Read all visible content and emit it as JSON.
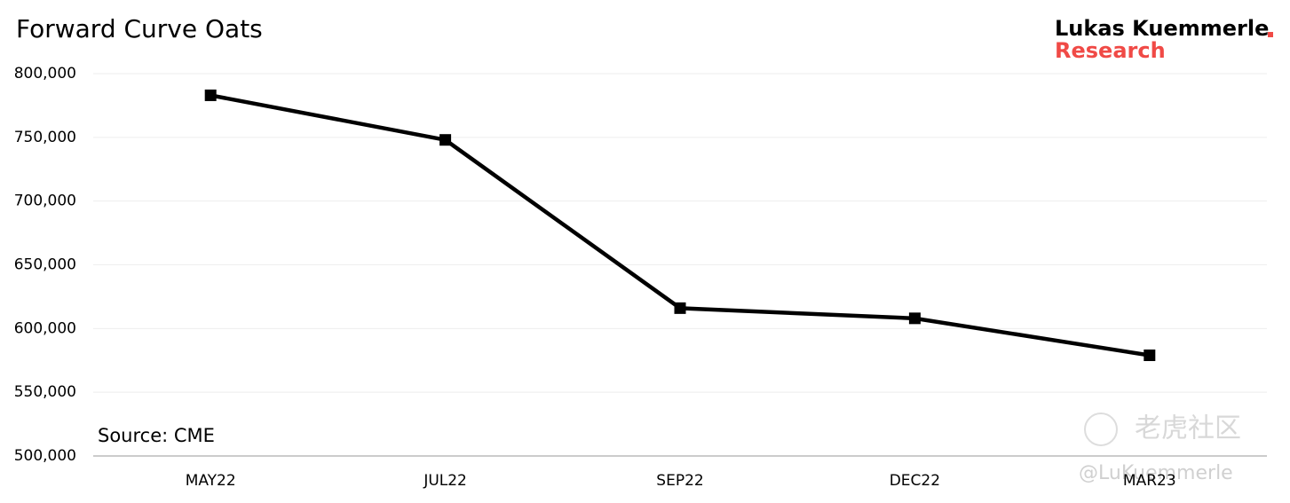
{
  "chart_data": {
    "type": "line",
    "title": "Forward Curve Oats",
    "brand": {
      "name": "Lukas Kuemmerle",
      "sub": "Research"
    },
    "source": "Source: CME",
    "watermark": {
      "site": "老虎社区",
      "handle": "@LuKuemmerle"
    },
    "categories": [
      "MAY22",
      "JUL22",
      "SEP22",
      "DEC22",
      "MAR23"
    ],
    "series": [
      {
        "name": "Oats",
        "color": "#000000",
        "values": [
          783000,
          748000,
          616000,
          608000,
          579000
        ]
      }
    ],
    "ylim": [
      500000,
      800000
    ],
    "yticks": [
      {
        "value": 500000,
        "label": "500,000"
      },
      {
        "value": 550000,
        "label": "550,000"
      },
      {
        "value": 600000,
        "label": "600,000"
      },
      {
        "value": 650000,
        "label": "650,000"
      },
      {
        "value": 700000,
        "label": "700,000"
      },
      {
        "value": 750000,
        "label": "750,000"
      },
      {
        "value": 800000,
        "label": "800,000"
      }
    ],
    "grid": true
  }
}
